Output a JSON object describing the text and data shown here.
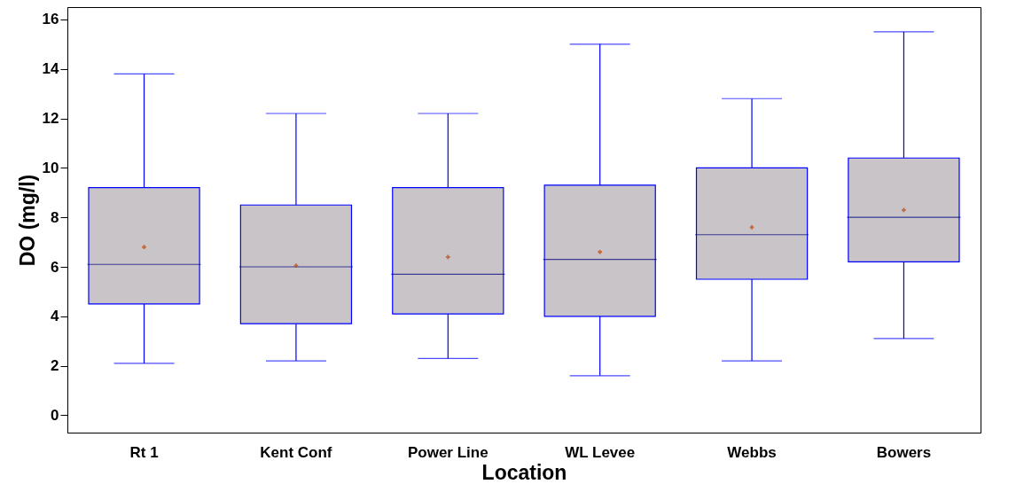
{
  "chart_data": {
    "type": "box",
    "xlabel": "Location",
    "ylabel": "DO (mg/l)",
    "categories": [
      "Rt 1",
      "Kent Conf",
      "Power Line",
      "WL Levee",
      "Webbs",
      "Bowers"
    ],
    "ylim": [
      -0.7,
      16.5
    ],
    "yticks": [
      0,
      2,
      4,
      6,
      8,
      10,
      12,
      14,
      16
    ],
    "marker": "cross",
    "series": [
      {
        "color": "#c8c4c8",
        "boxes": [
          {
            "low": 2.1,
            "q1": 4.5,
            "median": 6.1,
            "q3": 9.2,
            "high": 13.8,
            "mean": 6.8
          },
          {
            "low": 2.2,
            "q1": 3.7,
            "median": 6.0,
            "q3": 8.5,
            "high": 12.2,
            "mean": 6.05
          },
          {
            "low": 2.3,
            "q1": 4.1,
            "median": 5.7,
            "q3": 9.2,
            "high": 12.2,
            "mean": 6.4
          },
          {
            "low": 1.6,
            "q1": 4.0,
            "median": 6.3,
            "q3": 9.3,
            "high": 15.0,
            "mean": 6.6
          },
          {
            "low": 2.2,
            "q1": 5.5,
            "median": 7.3,
            "q3": 10.0,
            "high": 12.8,
            "mean": 7.6
          },
          {
            "low": 3.1,
            "q1": 6.2,
            "median": 8.0,
            "q3": 10.4,
            "high": 15.5,
            "mean": 8.3
          }
        ]
      }
    ]
  }
}
